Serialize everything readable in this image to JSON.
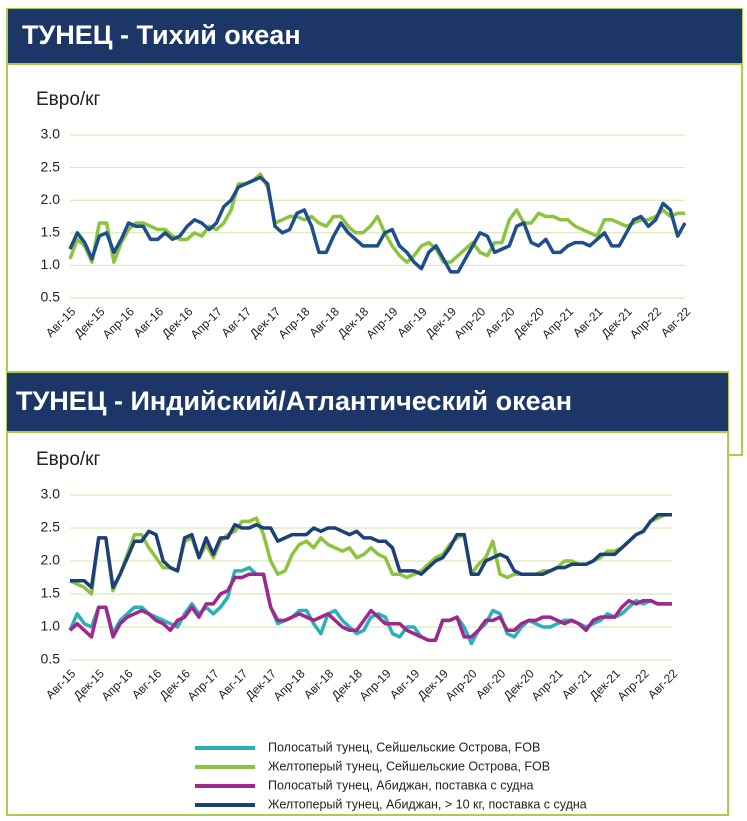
{
  "chart_data": [
    {
      "type": "line",
      "title": "ТУНЕЦ - Тихий океан",
      "y_label": "Евро/кг",
      "categories": [
        "Авг-15",
        null,
        null,
        null,
        "Дек-15",
        null,
        null,
        null,
        "Апр-16",
        null,
        null,
        null,
        "Авг-16",
        null,
        null,
        null,
        "Дек-16",
        null,
        null,
        null,
        "Апр-17",
        null,
        null,
        null,
        "Авг-17",
        null,
        null,
        null,
        "Дек-17",
        null,
        null,
        null,
        "Апр-18",
        null,
        null,
        null,
        "Авг-18",
        null,
        null,
        null,
        "Дек-18",
        null,
        null,
        null,
        "Апр-19",
        null,
        null,
        null,
        "Авг-19",
        null,
        null,
        null,
        "Дек-19",
        null,
        null,
        null,
        "Апр-20",
        null,
        null,
        null,
        "Авг-20",
        null,
        null,
        null,
        "Дек-20",
        null,
        null,
        null,
        "Апр-21",
        null,
        null,
        null,
        "Авг-21",
        null,
        null,
        null,
        "Дек-21",
        null,
        null,
        null,
        "Апр-22",
        null,
        null,
        null,
        "Авг-22"
      ],
      "ylim": [
        0.5,
        3.0
      ],
      "yticks": [
        {
          "value": 3,
          "label": "3.0"
        },
        2.5,
        {
          "value": 2,
          "label": "2.0"
        },
        1.5,
        {
          "value": 1,
          "label": "1.0"
        },
        0.5
      ],
      "grid": true,
      "series": [
        {
          "color": "#8cc43f",
          "values": [
            1.1,
            1.4,
            1.3,
            1.05,
            1.65,
            1.65,
            1.05,
            1.35,
            1.55,
            1.65,
            1.65,
            1.6,
            1.55,
            1.55,
            1.45,
            1.4,
            1.4,
            1.5,
            1.45,
            1.6,
            1.55,
            1.65,
            1.85,
            2.25,
            2.25,
            2.3,
            2.4,
            2.2,
            1.65,
            1.7,
            1.75,
            1.75,
            1.7,
            1.75,
            1.65,
            1.6,
            1.75,
            1.75,
            1.6,
            1.5,
            1.5,
            1.6,
            1.75,
            1.5,
            1.3,
            1.15,
            1.05,
            1.15,
            1.3,
            1.35,
            1.25,
            1.05,
            1.05,
            1.15,
            1.25,
            1.35,
            1.2,
            1.15,
            1.35,
            1.35,
            1.7,
            1.85,
            1.65,
            1.65,
            1.8,
            1.75,
            1.75,
            1.7,
            1.7,
            1.6,
            1.55,
            1.5,
            1.45,
            1.7,
            1.7,
            1.65,
            1.6,
            1.65,
            1.7,
            1.7,
            1.75,
            1.85,
            1.75,
            1.8,
            1.8
          ]
        },
        {
          "color": "#1f4e8c",
          "values": [
            1.25,
            1.5,
            1.35,
            1.1,
            1.45,
            1.5,
            1.2,
            1.4,
            1.65,
            1.6,
            1.6,
            1.4,
            1.4,
            1.5,
            1.4,
            1.45,
            1.6,
            1.7,
            1.65,
            1.55,
            1.65,
            1.9,
            2.0,
            2.2,
            2.25,
            2.3,
            2.35,
            2.25,
            1.6,
            1.5,
            1.55,
            1.8,
            1.85,
            1.6,
            1.2,
            1.2,
            1.45,
            1.65,
            1.5,
            1.4,
            1.3,
            1.3,
            1.3,
            1.5,
            1.55,
            1.3,
            1.2,
            1.05,
            0.95,
            1.2,
            1.3,
            1.1,
            0.9,
            0.9,
            1.1,
            1.3,
            1.5,
            1.45,
            1.2,
            1.25,
            1.3,
            1.6,
            1.65,
            1.35,
            1.3,
            1.4,
            1.2,
            1.2,
            1.3,
            1.35,
            1.35,
            1.3,
            1.4,
            1.5,
            1.3,
            1.3,
            1.5,
            1.7,
            1.75,
            1.6,
            1.7,
            1.95,
            1.85,
            1.45,
            1.65
          ]
        }
      ]
    },
    {
      "type": "line",
      "title": "ТУНЕЦ - Индийский/Атлантический океан",
      "y_label": "Евро/кг",
      "categories": [
        "Авг-15",
        null,
        null,
        null,
        "Дек-15",
        null,
        null,
        null,
        "Апр-16",
        null,
        null,
        null,
        "Авг-16",
        null,
        null,
        null,
        "Дек-16",
        null,
        null,
        null,
        "Апр-17",
        null,
        null,
        null,
        "Авг-17",
        null,
        null,
        null,
        "Дек-17",
        null,
        null,
        null,
        "Апр-18",
        null,
        null,
        null,
        "Авг-18",
        null,
        null,
        null,
        "Дек-18",
        null,
        null,
        null,
        "Апр-19",
        null,
        null,
        null,
        "Авг-19",
        null,
        null,
        null,
        "Дек-19",
        null,
        null,
        null,
        "Апр-20",
        null,
        null,
        null,
        "Авг-20",
        null,
        null,
        null,
        "Дек-20",
        null,
        null,
        null,
        "Апр-21",
        null,
        null,
        null,
        "Авг-21",
        null,
        null,
        null,
        "Дек-21",
        null,
        null,
        null,
        "Апр-22",
        null,
        null,
        null,
        "Авг-22"
      ],
      "ylim": [
        0.5,
        3.0
      ],
      "yticks": [
        {
          "value": 3,
          "label": "3.0"
        },
        2.5,
        {
          "value": 2,
          "label": "2.0"
        },
        1.5,
        {
          "value": 1,
          "label": "1.0"
        },
        0.5
      ],
      "grid": true,
      "series": [
        {
          "name": "Полосатый тунец, Сейшельские Острова, FOB",
          "color": "#2ab0b5",
          "values": [
            0.95,
            1.2,
            1.05,
            1.0,
            1.3,
            1.3,
            0.9,
            1.1,
            1.2,
            1.3,
            1.3,
            1.2,
            1.15,
            1.1,
            1.05,
            1.0,
            1.2,
            1.35,
            1.2,
            1.3,
            1.2,
            1.3,
            1.45,
            1.85,
            1.85,
            1.9,
            1.8,
            1.8,
            1.3,
            1.05,
            1.1,
            1.15,
            1.25,
            1.25,
            1.05,
            0.9,
            1.2,
            1.25,
            1.1,
            1.0,
            0.9,
            0.95,
            1.15,
            1.2,
            1.15,
            0.9,
            0.85,
            1.0,
            1.0,
            0.85,
            0.8,
            0.8,
            1.1,
            1.1,
            1.15,
            1.0,
            0.75,
            0.95,
            1.05,
            1.25,
            1.2,
            0.9,
            0.85,
            1.0,
            1.1,
            1.05,
            1.0,
            1.0,
            1.05,
            1.1,
            1.1,
            1.05,
            1.0,
            1.05,
            1.1,
            1.2,
            1.15,
            1.2,
            1.3,
            1.4,
            1.35,
            1.4,
            1.35,
            1.35,
            1.35
          ]
        },
        {
          "name": "Желтоперый тунец, Сейшельские Острова, FOB",
          "color": "#8cc43f",
          "values": [
            1.7,
            1.65,
            1.6,
            1.5,
            2.35,
            2.35,
            1.55,
            1.8,
            2.1,
            2.4,
            2.4,
            2.2,
            2.05,
            1.9,
            1.9,
            1.85,
            2.3,
            2.35,
            2.05,
            2.25,
            2.05,
            2.3,
            2.4,
            2.45,
            2.6,
            2.6,
            2.65,
            2.4,
            2.0,
            1.8,
            1.85,
            2.1,
            2.25,
            2.3,
            2.2,
            2.35,
            2.25,
            2.2,
            2.15,
            2.2,
            2.05,
            2.1,
            2.2,
            2.1,
            2.05,
            1.8,
            1.8,
            1.75,
            1.8,
            1.85,
            1.95,
            2.05,
            2.1,
            2.25,
            2.35,
            2.4,
            1.8,
            1.95,
            2.05,
            2.3,
            1.8,
            1.75,
            1.8,
            1.8,
            1.8,
            1.8,
            1.85,
            1.85,
            1.9,
            2.0,
            2.0,
            1.95,
            1.95,
            2.0,
            2.05,
            2.15,
            2.15,
            2.2,
            2.3,
            2.4,
            2.45,
            2.6,
            2.65,
            2.7,
            2.7
          ]
        },
        {
          "name": "Полосатый тунец, Абиджан, поставка с судна",
          "color": "#a0278b",
          "values": [
            0.95,
            1.05,
            0.95,
            0.85,
            1.3,
            1.3,
            0.85,
            1.05,
            1.15,
            1.2,
            1.25,
            1.2,
            1.1,
            1.05,
            0.95,
            1.1,
            1.15,
            1.3,
            1.15,
            1.35,
            1.35,
            1.5,
            1.55,
            1.75,
            1.75,
            1.8,
            1.8,
            1.8,
            1.3,
            1.1,
            1.1,
            1.15,
            1.2,
            1.15,
            1.1,
            1.15,
            1.2,
            1.1,
            1.0,
            0.95,
            0.95,
            1.1,
            1.25,
            1.15,
            1.05,
            1.05,
            1.05,
            0.95,
            0.9,
            0.85,
            0.8,
            0.8,
            1.1,
            1.1,
            1.15,
            0.85,
            0.85,
            0.95,
            1.1,
            1.1,
            1.15,
            0.95,
            0.95,
            1.05,
            1.1,
            1.1,
            1.15,
            1.15,
            1.1,
            1.05,
            1.1,
            1.05,
            0.95,
            1.1,
            1.15,
            1.15,
            1.15,
            1.3,
            1.4,
            1.35,
            1.4,
            1.4,
            1.35,
            1.35,
            1.35
          ]
        },
        {
          "name": "Желтоперый тунец, Абиджан, > 10 кг, поставка с судна",
          "color": "#1f3f78",
          "values": [
            1.7,
            1.7,
            1.7,
            1.6,
            2.35,
            2.35,
            1.6,
            1.8,
            2.05,
            2.3,
            2.3,
            2.45,
            2.4,
            2.0,
            1.9,
            1.85,
            2.35,
            2.4,
            2.05,
            2.35,
            2.1,
            2.35,
            2.35,
            2.55,
            2.5,
            2.5,
            2.55,
            2.5,
            2.5,
            2.3,
            2.35,
            2.4,
            2.4,
            2.4,
            2.5,
            2.45,
            2.5,
            2.5,
            2.45,
            2.4,
            2.45,
            2.35,
            2.35,
            2.3,
            2.3,
            2.2,
            1.85,
            1.85,
            1.85,
            1.8,
            1.9,
            2.0,
            2.05,
            2.2,
            2.4,
            2.4,
            1.8,
            1.8,
            2.0,
            2.05,
            2.1,
            2.05,
            1.85,
            1.8,
            1.8,
            1.8,
            1.8,
            1.85,
            1.9,
            1.9,
            1.95,
            1.95,
            1.95,
            2.0,
            2.1,
            2.1,
            2.1,
            2.2,
            2.3,
            2.4,
            2.45,
            2.6,
            2.7,
            2.7,
            2.7
          ]
        }
      ]
    }
  ]
}
